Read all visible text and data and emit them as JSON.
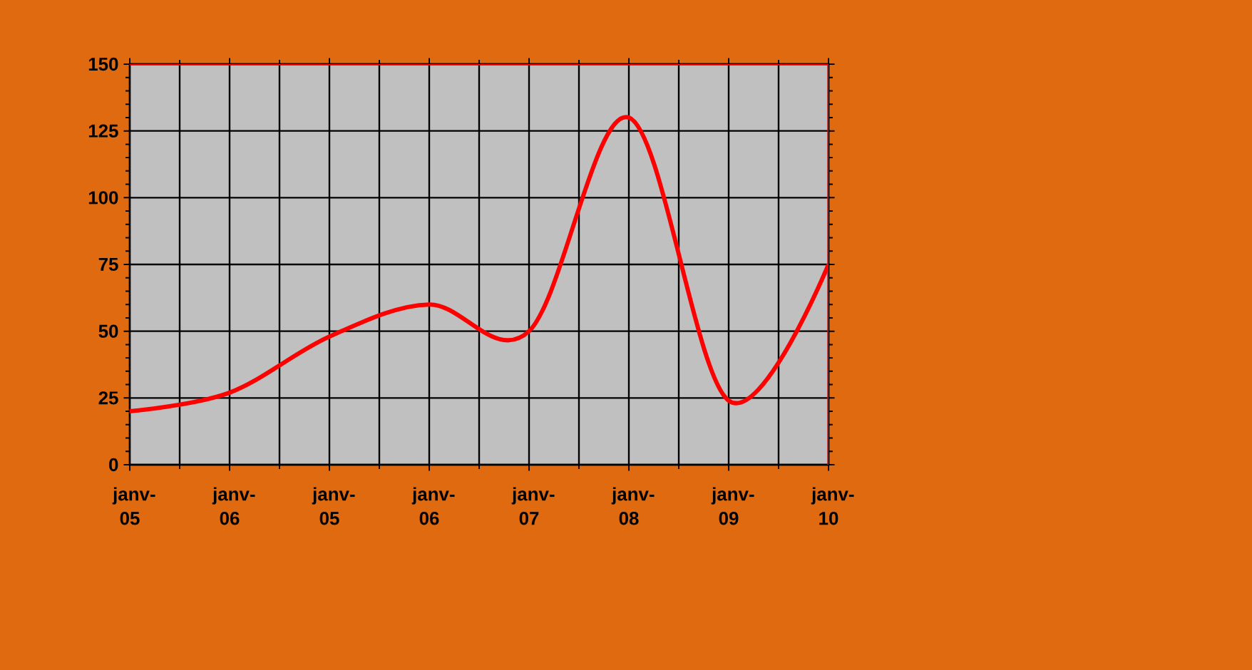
{
  "chart_data": {
    "type": "line",
    "categories": [
      "janv-05",
      "janv-06",
      "janv-05",
      "janv-06",
      "janv-07",
      "janv-08",
      "janv-09",
      "janv-10"
    ],
    "series": [
      {
        "color": "#ff0000",
        "values": [
          20,
          27,
          48,
          60,
          50,
          130,
          24,
          75
        ]
      }
    ],
    "ylim": [
      0,
      150
    ],
    "yticks": [
      0,
      25,
      50,
      75,
      100,
      125,
      150
    ],
    "grid": true
  }
}
